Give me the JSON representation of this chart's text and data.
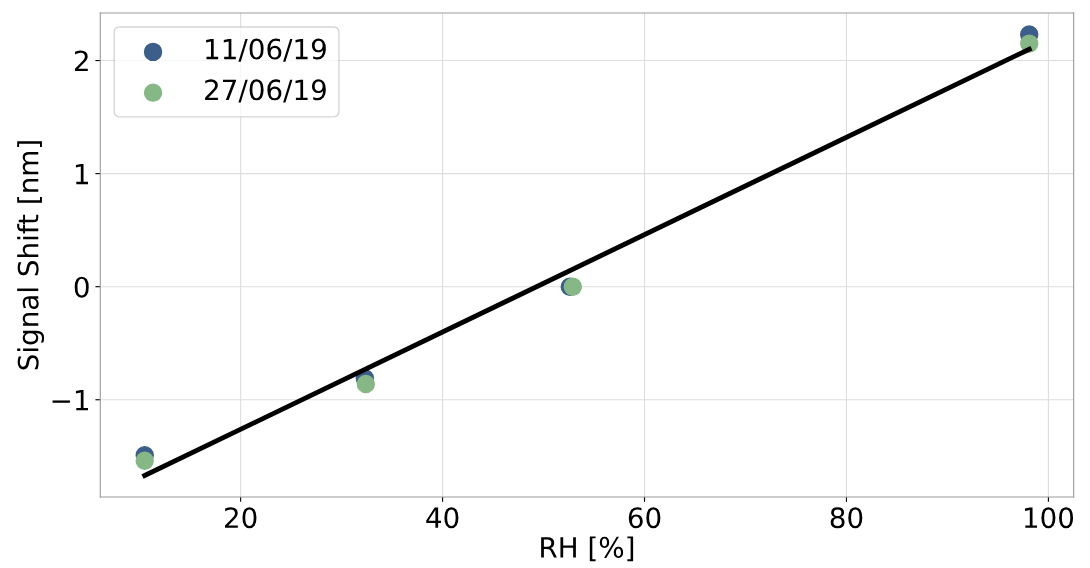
{
  "chart_data": {
    "type": "scatter",
    "xlabel": "RH [%]",
    "ylabel": "Signal Shift [nm]",
    "series": [
      {
        "name": "11/06/19",
        "color": "#3b5f8a",
        "x": [
          10.5,
          32.3,
          52.6,
          98.1
        ],
        "values": [
          -1.49,
          -0.81,
          0.0,
          2.23
        ]
      },
      {
        "name": "27/06/19",
        "color": "#86b886",
        "x": [
          10.5,
          32.4,
          52.9,
          98.1
        ],
        "values": [
          -1.54,
          -0.86,
          0.0,
          2.15
        ]
      },
      {
        "type": "line",
        "marker": "none",
        "color": "#000000",
        "x": [
          10.5,
          98.1
        ],
        "values": [
          -1.67,
          2.1
        ]
      }
    ],
    "xlim": [
      6.1,
      102.5
    ],
    "ylim": [
      -1.86,
      2.42
    ],
    "xticks": [
      20,
      40,
      60,
      80,
      100
    ],
    "yticks": [
      -1,
      0,
      1,
      2
    ],
    "grid": true,
    "legend": "top left",
    "marker": "circle"
  }
}
